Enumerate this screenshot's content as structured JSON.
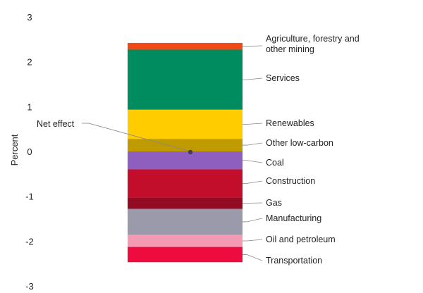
{
  "chart_data": {
    "type": "bar",
    "subtype": "stacked-single-column",
    "title": "",
    "ylabel": "Percent",
    "ylim": [
      -3,
      3
    ],
    "yticks": [
      3,
      2,
      1,
      0,
      -1,
      -2,
      -3
    ],
    "grid": false,
    "net_effect": {
      "label": "Net effect",
      "value": 0
    },
    "segments": [
      {
        "name": "Agriculture, forestry and other mining",
        "lines": [
          "Agriculture, forestry and",
          "other mining"
        ],
        "from": 2.27,
        "to": 2.42,
        "color": "#f24a16"
      },
      {
        "name": "Services",
        "lines": [
          "Services"
        ],
        "from": 0.93,
        "to": 2.27,
        "color": "#008c5e"
      },
      {
        "name": "Renewables",
        "lines": [
          "Renewables"
        ],
        "from": 0.28,
        "to": 0.93,
        "color": "#ffcc00"
      },
      {
        "name": "Other low-carbon",
        "lines": [
          "Other low-carbon"
        ],
        "from": 0.0,
        "to": 0.28,
        "color": "#bf9b00"
      },
      {
        "name": "Coal",
        "lines": [
          "Coal"
        ],
        "from": -0.4,
        "to": 0.0,
        "color": "#8e5fbf"
      },
      {
        "name": "Construction",
        "lines": [
          "Construction"
        ],
        "from": -1.03,
        "to": -0.4,
        "color": "#c20e2a"
      },
      {
        "name": "Gas",
        "lines": [
          "Gas"
        ],
        "from": -1.28,
        "to": -1.03,
        "color": "#920b22"
      },
      {
        "name": "Manufacturing",
        "lines": [
          "Manufacturing"
        ],
        "from": -1.86,
        "to": -1.28,
        "color": "#9a9aab"
      },
      {
        "name": "Oil and petroleum",
        "lines": [
          "Oil and petroleum"
        ],
        "from": -2.13,
        "to": -1.86,
        "color": "#f59ab4"
      },
      {
        "name": "Transportation",
        "lines": [
          "Transportation"
        ],
        "from": -2.47,
        "to": -2.13,
        "color": "#ee0c3e"
      }
    ]
  }
}
